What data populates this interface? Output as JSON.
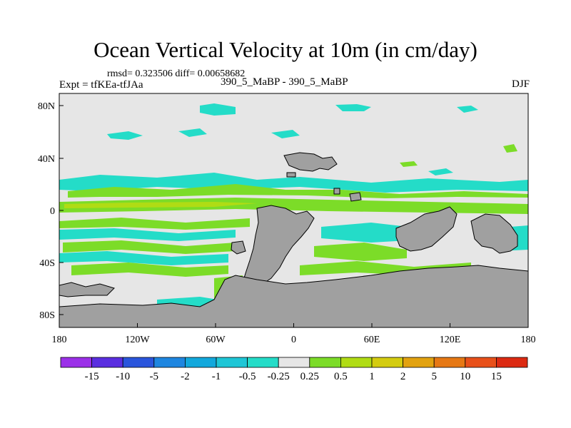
{
  "title": "Ocean Vertical Velocity at 10m (in cm/day)",
  "stats": "rmsd= 0.323506 diff= 0.00658682",
  "experiment": "Expt = tfKEa-tfJAa",
  "center_label": "390_5_MaBP - 390_5_MaBP",
  "season": "DJF",
  "lon_ticks": [
    "180",
    "120W",
    "60W",
    "0",
    "60E",
    "120E",
    "180"
  ],
  "lat_ticks": [
    "80N",
    "40N",
    "0",
    "40S",
    "80S"
  ],
  "colorbar": {
    "labels": [
      "-15",
      "-10",
      "-5",
      "-2",
      "-1",
      "-0.5",
      "-0.25",
      "0.25",
      "0.5",
      "1",
      "2",
      "5",
      "10",
      "15"
    ],
    "colors": [
      "#9b30e8",
      "#5a2ee0",
      "#2a55dc",
      "#1e86e0",
      "#12a8dc",
      "#1ec6d6",
      "#24dcc8",
      "#e6e6e6",
      "#7cdc28",
      "#b0dc14",
      "#d4cc10",
      "#e2a210",
      "#e67814",
      "#e8501a",
      "#dc2a12"
    ]
  },
  "land_color": "#a0a0a0",
  "ocean_neutral_color": "#e6e6e6"
}
